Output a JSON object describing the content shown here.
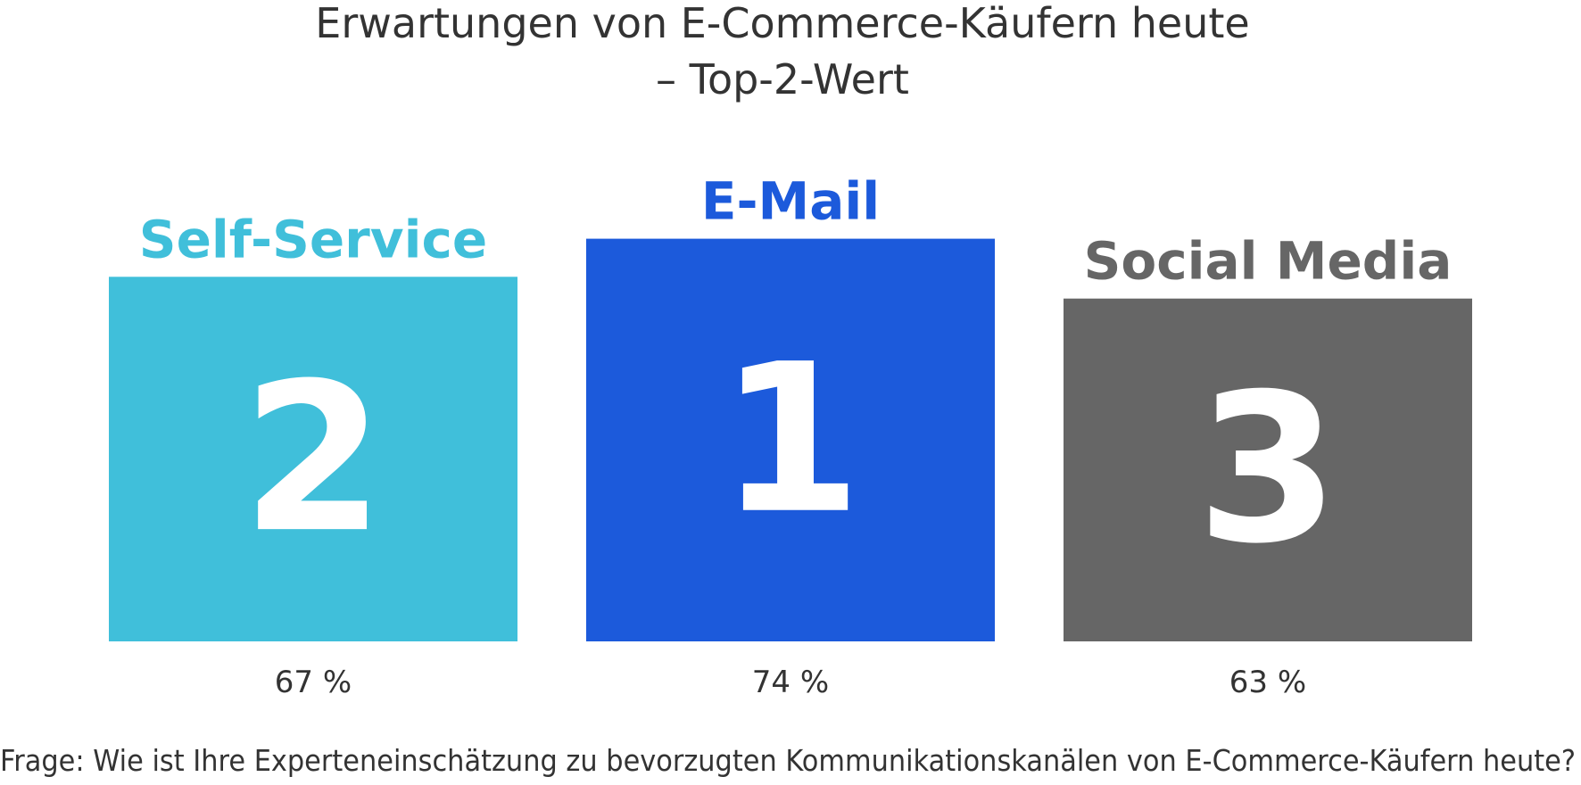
{
  "chart_data": {
    "type": "bar",
    "title": "Erwartungen von E-Commerce-Käufern heute",
    "subtitle": "– Top-2-Wert",
    "unit": "%",
    "categories": [
      "Self-Service",
      "E-Mail",
      "Social Media"
    ],
    "values": [
      67,
      74,
      63
    ],
    "value_labels": [
      "67 %",
      "74 %",
      "63 %"
    ],
    "ranks": [
      "2",
      "1",
      "3"
    ],
    "colors": [
      "#40BFDA",
      "#1C5ADB",
      "#666666"
    ],
    "label_colors": [
      "#40BFDA",
      "#1C5ADB",
      "#666666"
    ],
    "ylim": [
      0,
      100
    ],
    "grid": false,
    "legend": "none",
    "footnote": "Frage: Wie ist Ihre Experteneinschätzung zu bevorzugten Kommunikationskanälen von E-Commerce-Käufern heute?"
  }
}
